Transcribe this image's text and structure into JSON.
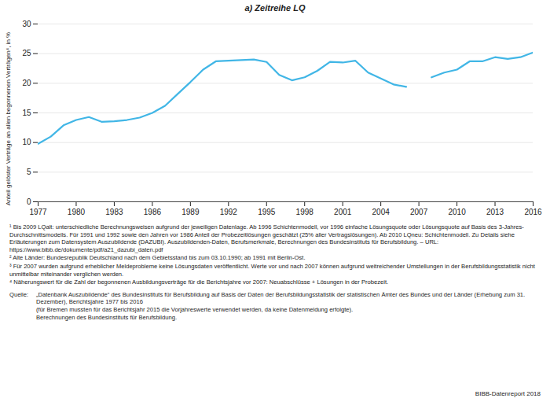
{
  "chart_data": {
    "type": "line",
    "title": "a) Zeitreihe LQ",
    "y_label": "Anteil gelöster Verträge an allen begonnenen Verträgen⁴, in %",
    "x": [
      1977,
      1978,
      1979,
      1980,
      1981,
      1982,
      1983,
      1984,
      1985,
      1986,
      1987,
      1988,
      1989,
      1990,
      1991,
      1992,
      1993,
      1994,
      1995,
      1996,
      1997,
      1998,
      1999,
      2000,
      2001,
      2002,
      2003,
      2004,
      2005,
      2006,
      2007,
      2008,
      2009,
      2010,
      2011,
      2012,
      2013,
      2014,
      2015,
      2016
    ],
    "values": [
      9.8,
      11.0,
      12.9,
      13.8,
      14.3,
      13.5,
      13.6,
      13.8,
      14.2,
      15.0,
      16.2,
      18.2,
      20.2,
      22.3,
      23.7,
      23.8,
      23.9,
      24.0,
      23.6,
      21.4,
      20.5,
      21.0,
      22.1,
      23.6,
      23.5,
      23.8,
      21.8,
      20.8,
      19.8,
      19.4,
      null,
      21.0,
      21.8,
      22.3,
      23.7,
      23.7,
      24.4,
      24.1,
      24.4,
      25.2
    ],
    "color": "#41b6e6",
    "xlim": [
      1977,
      2016
    ],
    "xticks": [
      1977,
      1980,
      1983,
      1986,
      1989,
      1992,
      1995,
      1998,
      2001,
      2004,
      2007,
      2010,
      2013,
      2016
    ],
    "ylim": [
      0,
      30
    ],
    "yticks": [
      0,
      5,
      10,
      15,
      20,
      25,
      30
    ],
    "grid": true,
    "footnotes": [
      "¹ Bis 2009 LQalt: unterschiedliche Berechnungsweisen aufgrund der jeweiligen Datenlage. Ab 1996 Schichtenmodell, vor 1996 einfache Lösungsquote oder Lösungsquote auf Basis des 3-Jahres-Durchschnittsmodells. Für 1991 und 1992 sowie den Jahren vor 1986 Anteil der Probezeitlösungen geschätzt (25% aller Vertragslösungen). Ab 2010 LQneu: Schichtenmodell. Zu Details siehe Erläuterungen zum Datensystem Auszubildende (DAZUBI). Auszubildenden-Daten, Berufsmerkmale, Berechnungen des Bundesinstituts für Berufsbildung. – URL: https://www.bibb.de/dokumente/pdf/a21_dazubi_daten.pdf",
      "² Alte Länder: Bundesrepublik Deutschland nach dem Gebietsstand bis zum 03.10.1990; ab 1991 mit Berlin-Ost.",
      "³ Für 2007 wurden aufgrund erheblicher Meldeprobleme keine Lösungsdaten veröffentlicht. Werte vor und nach 2007 können aufgrund weitreichender Umstellungen in der Berufsbildungsstatistik nicht unmittelbar miteinander verglichen werden.",
      "⁴ Näherungswert für die Zahl der begonnenen Ausbildungsverträge für die Berichtsjahre vor 2007: Neuabschlüsse + Lösungen in der Probezeit."
    ],
    "source_label": "Quelle:",
    "source": [
      "„Datenbank Auszubildende“ des Bundesinstituts für Berufsbildung auf Basis der Daten der Berufsbildungsstatistik der statistischen Ämter des Bundes und der Länder (Erhebung zum 31. Dezember), Berichtsjahre 1977 bis 2016",
      "(für Bremen mussten für das Berichtsjahr 2015 die Vorjahreswerte verwendet werden, da keine Datenmeldung erfolgte).",
      "Berechnungen des Bundesinstituts für Berufsbildung."
    ],
    "credit": "BIBB-Datenreport 2018"
  }
}
